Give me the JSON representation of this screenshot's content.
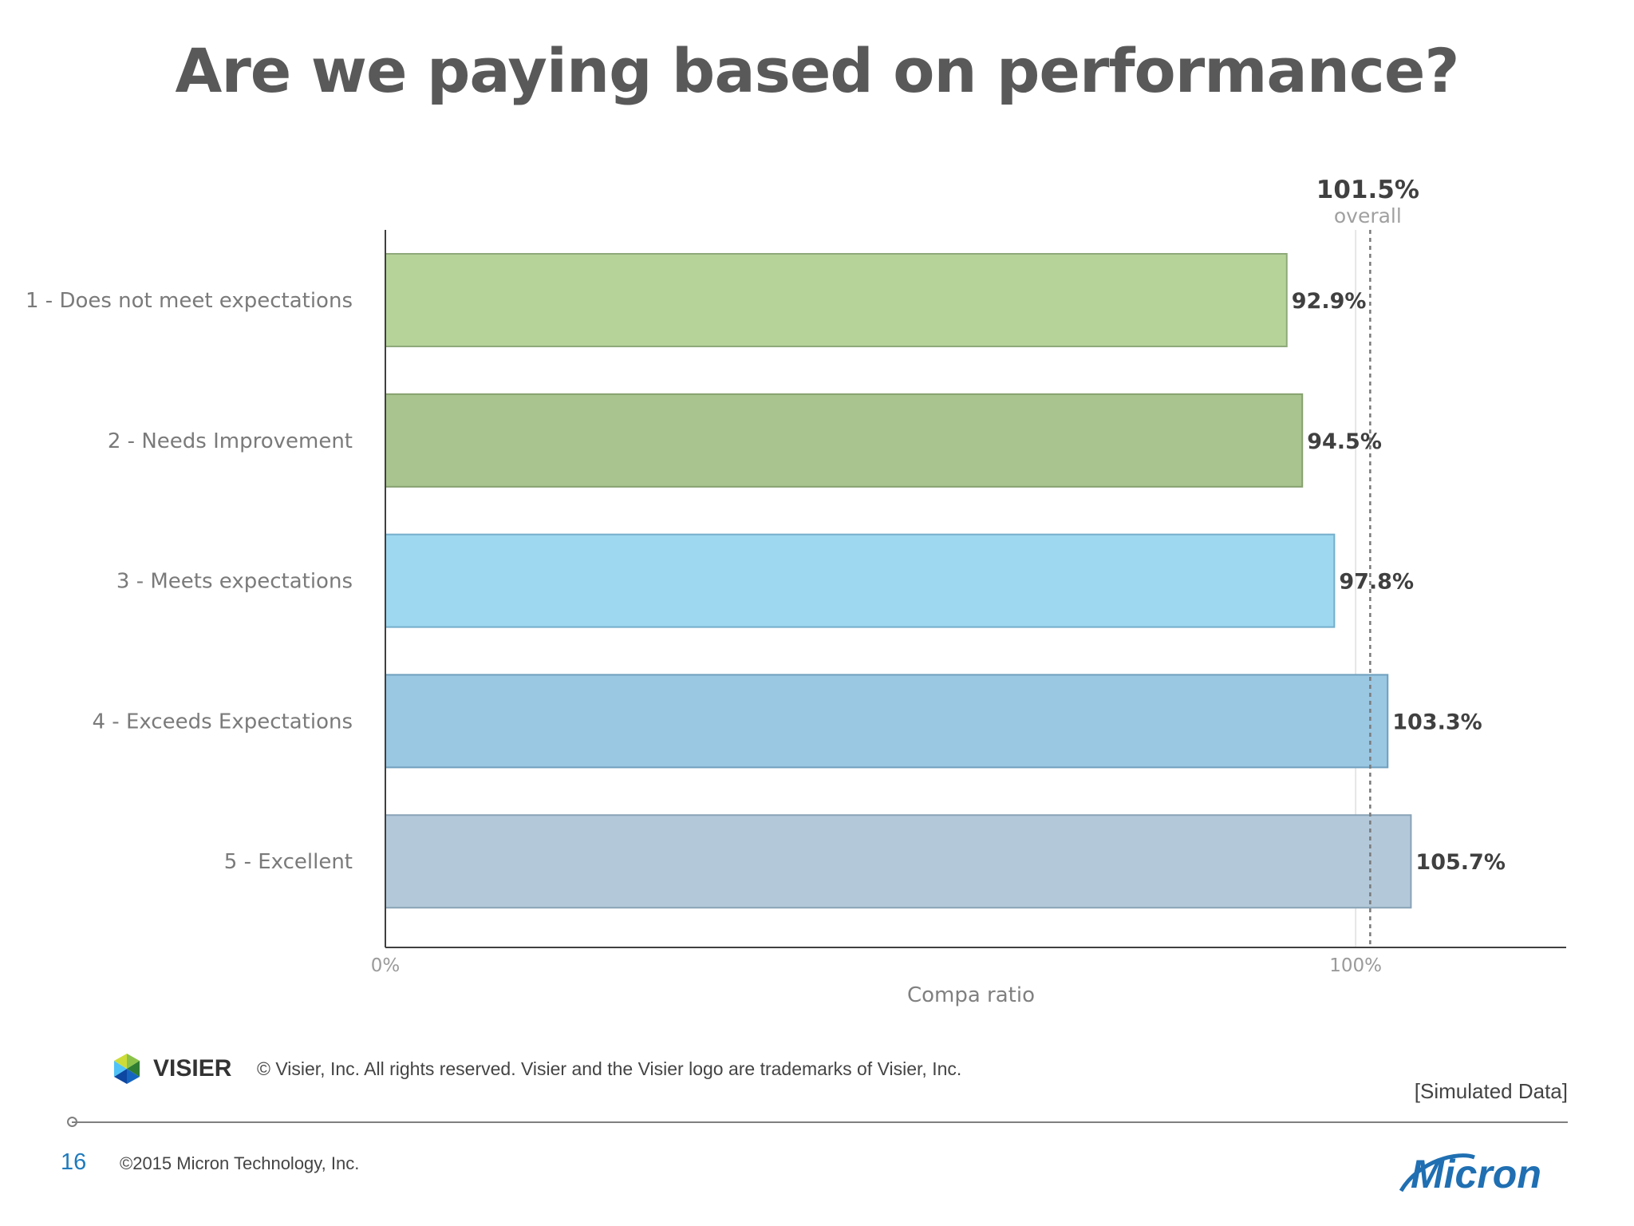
{
  "title": "Are we paying based on performance?",
  "chart_data": {
    "type": "bar",
    "orientation": "horizontal",
    "categories": [
      "1 - Does not meet expectations",
      "2 - Needs Improvement",
      "3 - Meets expectations",
      "4 - Exceeds Expectations",
      "5 - Excellent"
    ],
    "values": [
      92.9,
      94.5,
      97.8,
      103.3,
      105.7
    ],
    "value_labels": [
      "92.9%",
      "94.5%",
      "97.8%",
      "103.3%",
      "105.7%"
    ],
    "bar_colors": [
      "#b6d49a",
      "#a9c48f",
      "#9ed8f0",
      "#9ac7e2",
      "#b3c9da"
    ],
    "bar_borders": [
      "#8fa97a",
      "#86a06e",
      "#74aecb",
      "#6f9fbd",
      "#8aa3b6"
    ],
    "xlabel": "Compa ratio",
    "xlim": [
      0,
      121.7
    ],
    "xticks": [
      0,
      100
    ],
    "xtick_labels": [
      "0%",
      "100%"
    ],
    "reference_line": {
      "value": 101.5,
      "label": "101.5%",
      "sublabel": "overall",
      "style": "dotted"
    },
    "gridlines": [
      100
    ],
    "grid": false
  },
  "footer": {
    "visier_brand": "VISIER",
    "visier_copyright": "© Visier, Inc.  All rights reserved.  Visier and the Visier logo are trademarks of Visier, Inc.",
    "simulated_note": "[Simulated Data]",
    "page_number": "16",
    "micron_copyright": "©2015 Micron Technology, Inc.",
    "micron_brand": "Micron"
  }
}
